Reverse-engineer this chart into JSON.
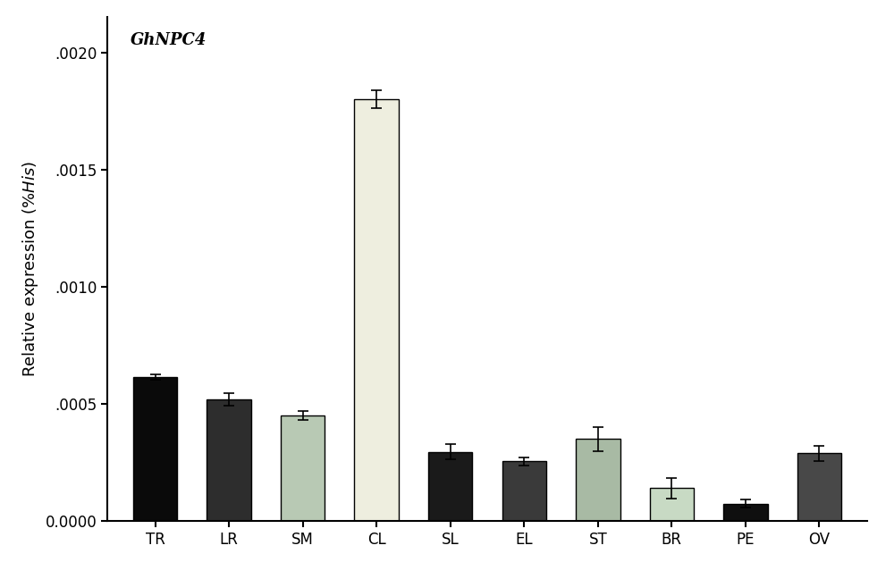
{
  "categories": [
    "TR",
    "LR",
    "SM",
    "CL",
    "SL",
    "EL",
    "ST",
    "BR",
    "PE",
    "OV"
  ],
  "values": [
    0.000615,
    0.00052,
    0.00045,
    0.0018,
    0.000295,
    0.000255,
    0.00035,
    0.00014,
    7.5e-05,
    0.00029
  ],
  "errors": [
    1.2e-05,
    2.8e-05,
    1.8e-05,
    3.8e-05,
    3.2e-05,
    1.8e-05,
    5.2e-05,
    4.2e-05,
    1.8e-05,
    3.2e-05
  ],
  "bar_colors": [
    "#0a0a0a",
    "#2d2d2d",
    "#b8c9b4",
    "#eeeedf",
    "#1a1a1a",
    "#3a3a3a",
    "#a8baa4",
    "#c8dac4",
    "#0f0f0f",
    "#484848"
  ],
  "bar_edgecolors": [
    "#000000",
    "#000000",
    "#000000",
    "#000000",
    "#000000",
    "#000000",
    "#000000",
    "#000000",
    "#000000",
    "#000000"
  ],
  "annotation": "GhNPC4",
  "ylim": [
    0.0,
    0.00215
  ],
  "yticks": [
    0.0,
    0.0005,
    0.001,
    0.0015,
    0.002
  ],
  "ytick_labels": [
    "0.0000",
    ".0005",
    ".0010",
    ".0015",
    ".0020"
  ],
  "background_color": "#ffffff",
  "title_fontsize": 13,
  "tick_fontsize": 12,
  "label_fontsize": 13
}
